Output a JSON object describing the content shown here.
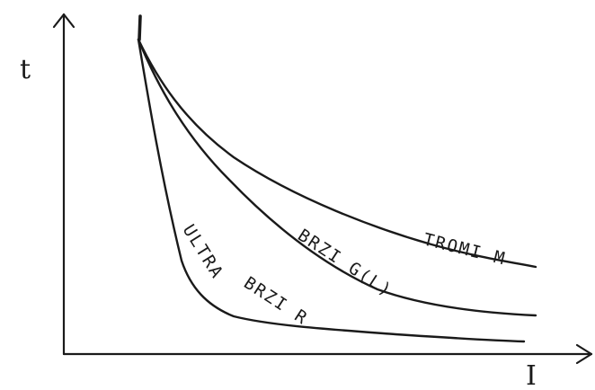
{
  "chart_data": {
    "type": "line",
    "xlabel": "I",
    "ylabel": "t",
    "series": [
      {
        "name": "TROMI M",
        "values": [
          [
            1.0,
            10.0
          ],
          [
            1.4,
            8.3
          ],
          [
            2.0,
            6.6
          ],
          [
            3.0,
            4.9
          ],
          [
            4.0,
            3.8
          ],
          [
            5.0,
            3.2
          ],
          [
            6.0,
            2.8
          ],
          [
            7.0,
            2.6
          ]
        ]
      },
      {
        "name": "BRZI G(L)",
        "values": [
          [
            1.0,
            10.0
          ],
          [
            1.4,
            7.7
          ],
          [
            2.0,
            5.6
          ],
          [
            3.0,
            3.7
          ],
          [
            4.0,
            2.4
          ],
          [
            5.0,
            1.6
          ],
          [
            6.0,
            1.3
          ],
          [
            7.0,
            1.2
          ]
        ]
      },
      {
        "name": "ULTRA BRZI R",
        "values": [
          [
            1.0,
            10.0
          ],
          [
            1.2,
            7.4
          ],
          [
            1.5,
            5.0
          ],
          [
            1.8,
            2.8
          ],
          [
            2.2,
            1.7
          ],
          [
            3.0,
            1.0
          ],
          [
            5.0,
            0.7
          ],
          [
            7.0,
            0.5
          ]
        ]
      }
    ]
  }
}
